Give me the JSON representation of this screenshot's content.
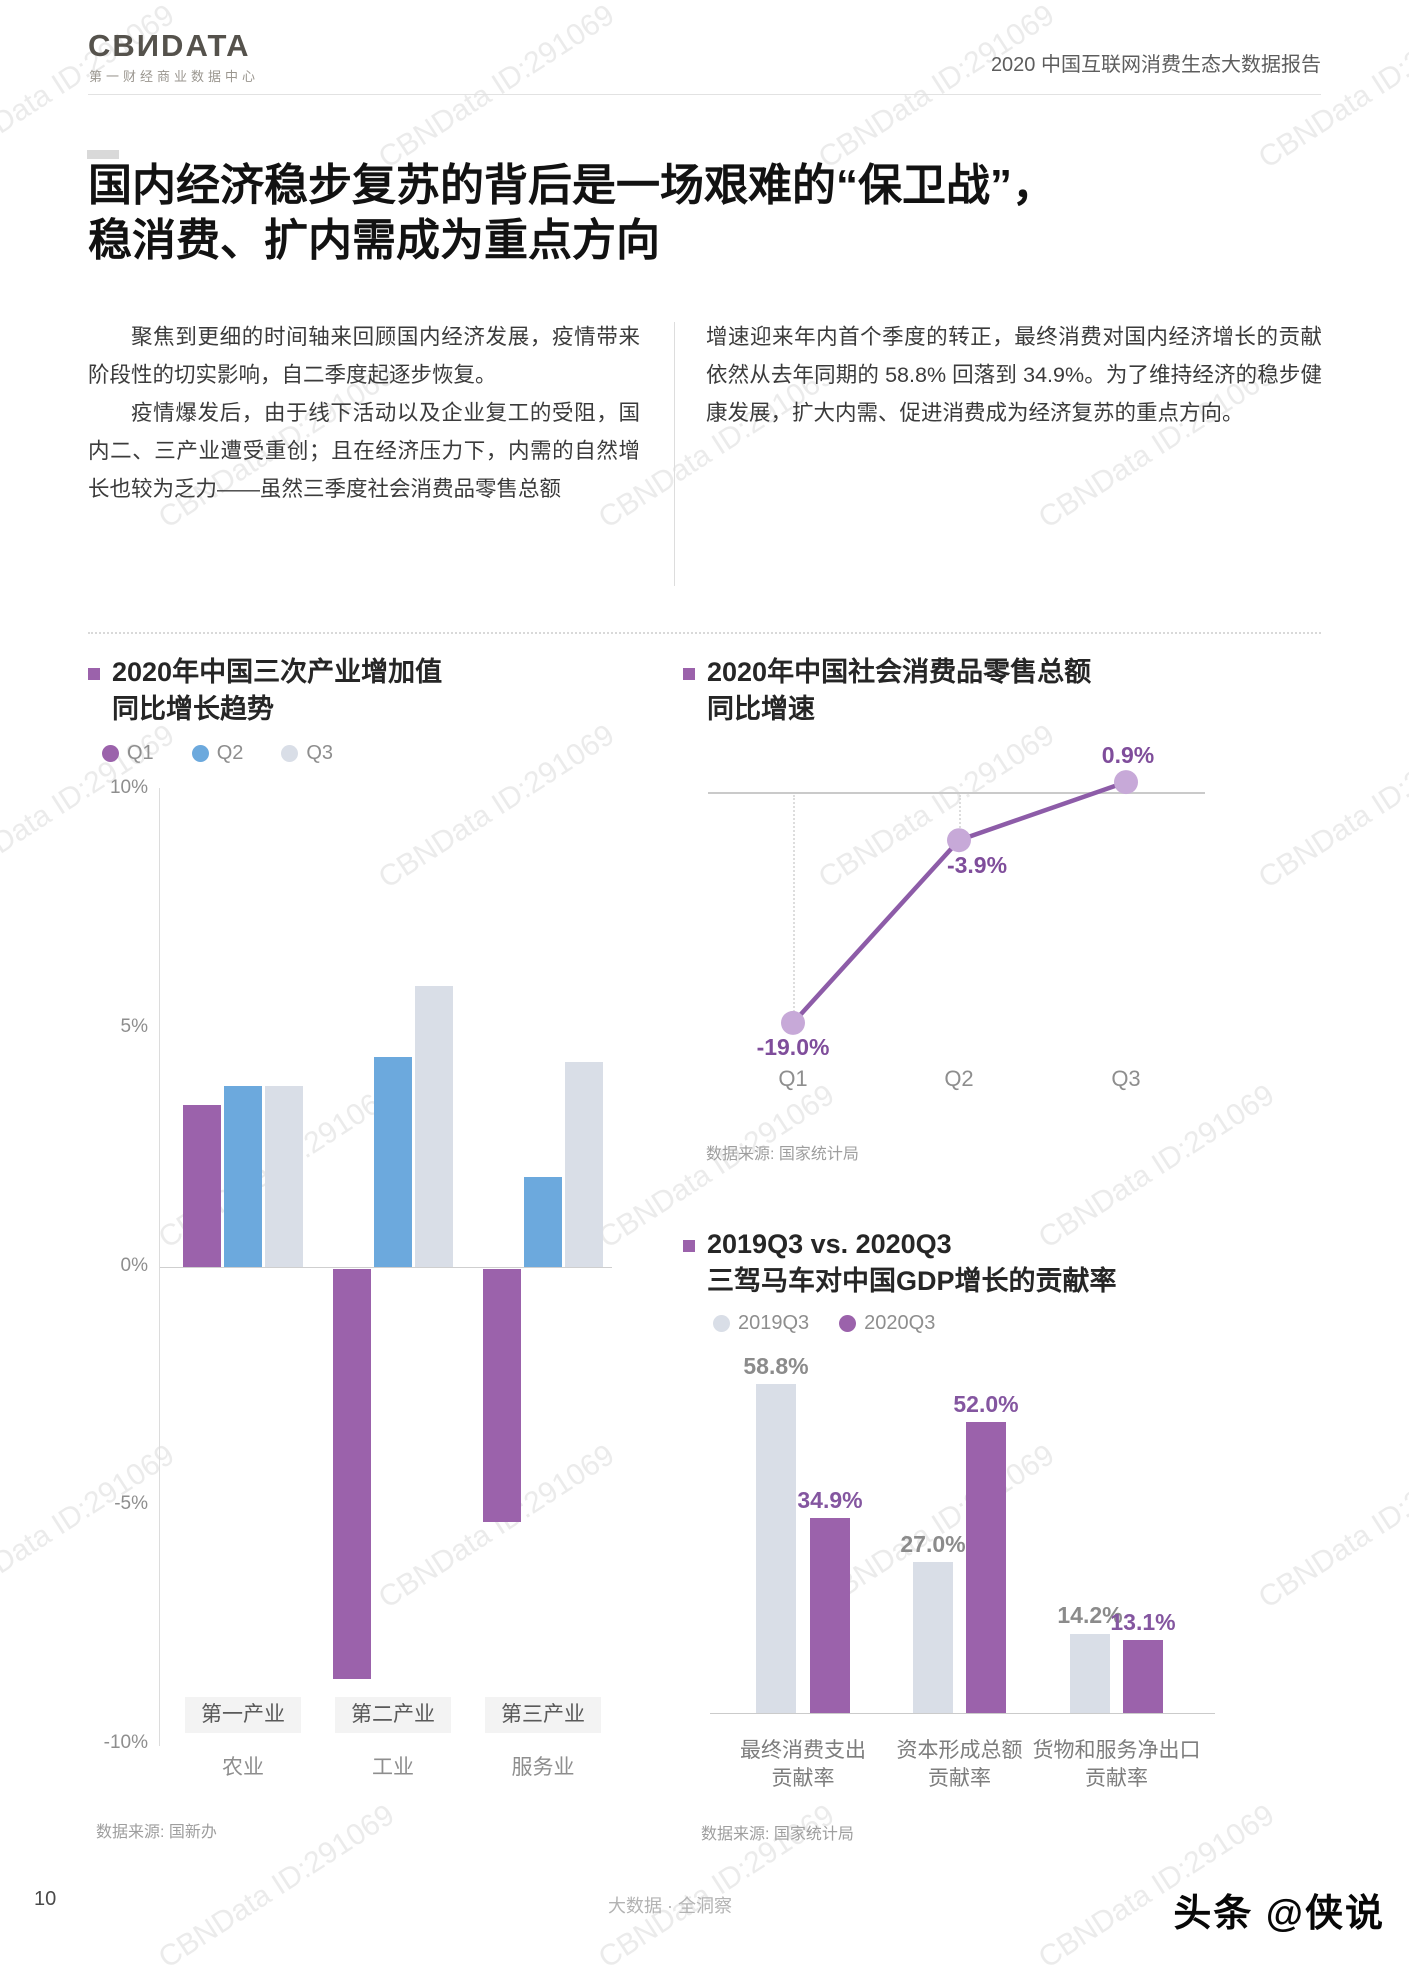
{
  "watermark": {
    "text": "CBNData ID:291069"
  },
  "header": {
    "logo": "CBИDATA",
    "logo_sub": "第一财经商业数据中心",
    "report_title": "2020 中国互联网消费生态大数据报告"
  },
  "headline": {
    "line1": "国内经济稳步复苏的背后是一场艰难的“保卫战”，",
    "line2": "稳消费、扩内需成为重点方向"
  },
  "body": {
    "left_para1": "聚焦到更细的时间轴来回顾国内经济发展，疫情带来阶段性的切实影响，自二季度起逐步恢复。",
    "left_para2": "疫情爆发后，由于线下活动以及企业复工的受阻，国内二、三产业遭受重创；且在经济压力下，内需的自然增长也较为乏力——虽然三季度社会消费品零售总额",
    "right_para": "增速迎来年内首个季度的转正，最终消费对国内经济增长的贡献依然从去年同期的 58.8% 回落到 34.9%。为了维持经济的稳步健康发展，扩大内需、促进消费成为经济复苏的重点方向。"
  },
  "chart_data": [
    {
      "id": "industry-growth",
      "type": "bar",
      "title": "2020年中国三次产业增加值同比增长趋势",
      "title_lines": [
        "2020年中国三次产业增加值",
        "同比增长趋势"
      ],
      "ylim": [
        -10,
        10
      ],
      "yticks": [
        "10%",
        "5%",
        "0%",
        "-5%",
        "-10%"
      ],
      "ytick_values": [
        10,
        5,
        0,
        -5,
        -10
      ],
      "categories": [
        {
          "label": "第一产业",
          "sublabel": "农业"
        },
        {
          "label": "第二产业",
          "sublabel": "工业"
        },
        {
          "label": "第三产业",
          "sublabel": "服务业"
        }
      ],
      "series": [
        {
          "name": "Q1",
          "color": "#9B62AB",
          "values": [
            3.4,
            -8.6,
            -5.3
          ]
        },
        {
          "name": "Q2",
          "color": "#6CA9DD",
          "values": [
            3.8,
            4.4,
            1.9
          ]
        },
        {
          "name": "Q3",
          "color": "#D9DEE7",
          "values": [
            3.8,
            5.9,
            4.3
          ]
        }
      ],
      "source": "数据来源: 国新办"
    },
    {
      "id": "retail-growth",
      "type": "line",
      "title": "2020年中国社会消费品零售总额同比增速",
      "title_lines": [
        "2020年中国社会消费品零售总额",
        "同比增速"
      ],
      "x": [
        "Q1",
        "Q2",
        "Q3"
      ],
      "values": [
        -19.0,
        -3.9,
        0.9
      ],
      "labels": [
        "-19.0%",
        "-3.9%",
        "0.9%"
      ],
      "line_color": "#8D5CA8",
      "point_color": "#C7A9D8",
      "label_color": "#7F4D9B",
      "source": "数据来源: 国家统计局"
    },
    {
      "id": "gdp-contribution",
      "type": "bar",
      "title": "2019Q3 vs. 2020Q3 三驾马车对中国GDP增长的贡献率",
      "title_lines": [
        "2019Q3 vs. 2020Q3",
        "三驾马车对中国GDP增长的贡献率"
      ],
      "categories": [
        {
          "label": "最终消费支出",
          "sublabel": "贡献率"
        },
        {
          "label": "资本形成总额",
          "sublabel": "贡献率"
        },
        {
          "label": "货物和服务净出口",
          "sublabel": "贡献率"
        }
      ],
      "series": [
        {
          "name": "2019Q3",
          "color": "#D9DEE7",
          "label_color": "#8b8b8b",
          "values": [
            58.8,
            27.0,
            14.2
          ],
          "labels": [
            "58.8%",
            "27.0%",
            "14.2%"
          ]
        },
        {
          "name": "2020Q3",
          "color": "#9B62AB",
          "label_color": "#8456A0",
          "values": [
            34.9,
            52.0,
            13.1
          ],
          "labels": [
            "34.9%",
            "52.0%",
            "13.1%"
          ]
        }
      ],
      "source": "数据来源: 国家统计局"
    }
  ],
  "footer": {
    "page_number": "10",
    "center": "大数据 · 全洞察",
    "right_mark": "头条 @侠说"
  }
}
